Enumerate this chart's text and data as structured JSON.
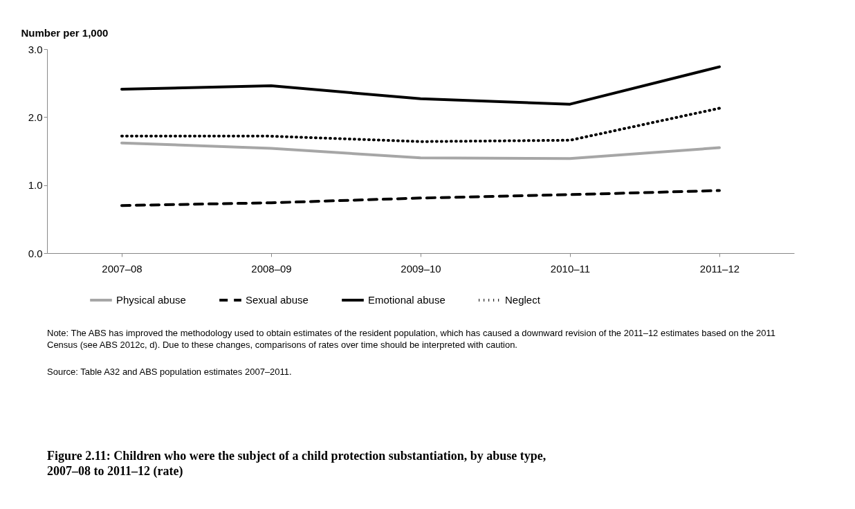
{
  "chart_data": {
    "type": "line",
    "title": "Figure 2.11: Children who were the subject of a child protection substantiation, by abuse type, 2007–08 to 2011–12 (rate)",
    "ylabel": "Number per 1,000",
    "categories": [
      "2007–08",
      "2008–09",
      "2009–10",
      "2010–11",
      "2011–12"
    ],
    "series": [
      {
        "name": "Physical abuse",
        "color": "#a6a6a6",
        "line_style": "solid",
        "values": [
          1.62,
          1.54,
          1.4,
          1.39,
          1.55
        ]
      },
      {
        "name": "Sexual abuse",
        "color": "#000000",
        "line_style": "dashed",
        "values": [
          0.7,
          0.74,
          0.81,
          0.86,
          0.92
        ]
      },
      {
        "name": "Emotional abuse",
        "color": "#000000",
        "line_style": "solid",
        "values": [
          2.41,
          2.46,
          2.27,
          2.19,
          2.74
        ]
      },
      {
        "name": "Neglect",
        "color": "#000000",
        "line_style": "dotted",
        "values": [
          1.72,
          1.72,
          1.64,
          1.66,
          2.13
        ]
      }
    ],
    "ylim": [
      0,
      3
    ],
    "yticks": [
      {
        "value": 0,
        "label": "0.0"
      },
      {
        "value": 1,
        "label": "1.0"
      },
      {
        "value": 2,
        "label": "2.0"
      },
      {
        "value": 3,
        "label": "3.0"
      }
    ],
    "grid": false,
    "legend": "bottom",
    "marker": "none",
    "annotations": [
      "Note: The ABS has improved the methodology used to obtain estimates of the resident population, which has caused a downward revision of the 2011–12 estimates based on the 2011 Census (see ABS 2012c, d). Due to these changes, comparisons of rates over time should be interpreted with caution.",
      "Source: Table A32 and ABS population estimates 2007–2011."
    ]
  }
}
